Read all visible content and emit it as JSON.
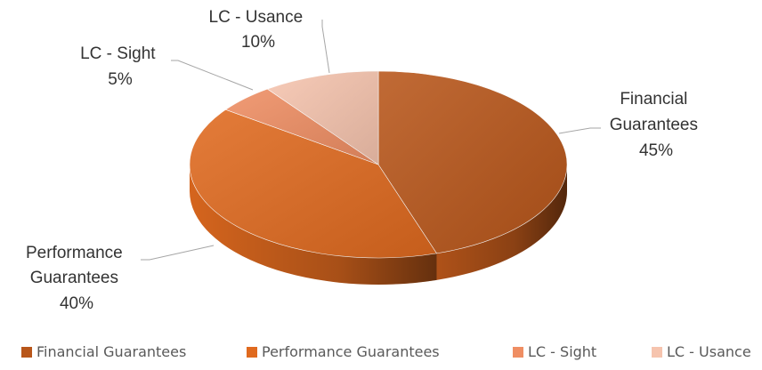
{
  "chart_data": {
    "type": "pie",
    "title": "",
    "slices": [
      {
        "label": "Financial Guarantees",
        "label_lines": [
          "Financial",
          "Guarantees"
        ],
        "value": 45,
        "value_label": "45%",
        "color": "#B8561A"
      },
      {
        "label": "Performance Guarantees",
        "label_lines": [
          "Performance",
          "Guarantees"
        ],
        "value": 40,
        "value_label": "40%",
        "color": "#E06A1F"
      },
      {
        "label": "LC - Sight",
        "label_lines": [
          "LC - Sight"
        ],
        "value": 5,
        "value_label": "5%",
        "color": "#EF8E63"
      },
      {
        "label": "LC - Usance",
        "label_lines": [
          "LC - Usance"
        ],
        "value": 10,
        "value_label": "10%",
        "color": "#F6C4AE"
      }
    ],
    "legend": {
      "position": "bottom",
      "items": [
        "Financial Guarantees",
        "Performance Guarantees",
        "LC - Sight",
        "LC - Usance"
      ]
    }
  }
}
